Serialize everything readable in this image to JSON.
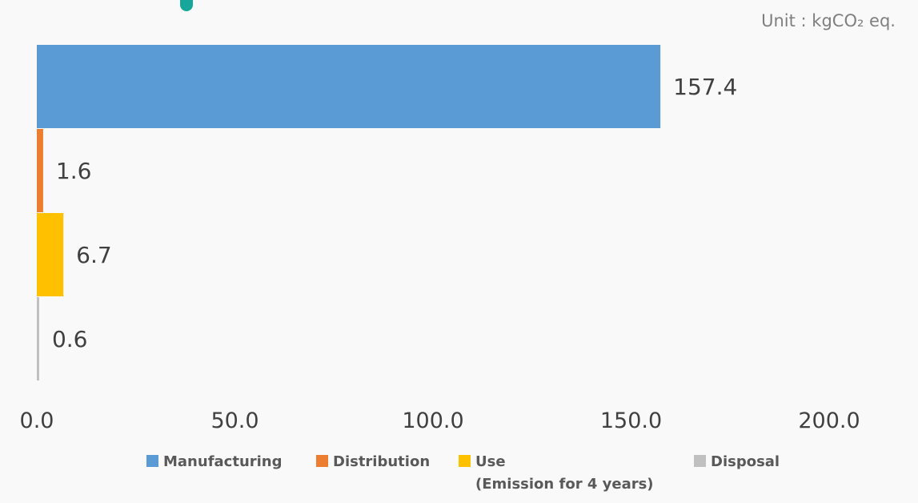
{
  "unit_label": "Unit : kgCO₂ eq.",
  "chart_data": {
    "type": "bar",
    "orientation": "horizontal",
    "categories": [
      "Manufacturing",
      "Distribution",
      "Use",
      "Disposal"
    ],
    "values": [
      157.4,
      1.6,
      6.7,
      0.6
    ],
    "value_labels": [
      "157.4",
      "1.6",
      "6.7",
      "0.6"
    ],
    "colors": [
      "#5b9bd5",
      "#ed7d31",
      "#ffc000",
      "#c0c0c0"
    ],
    "xlim": [
      0,
      200
    ],
    "xticks": [
      0,
      50,
      100,
      150,
      200
    ],
    "xtick_labels": [
      "0.0",
      "50.0",
      "100.0",
      "150.0",
      "200.0"
    ],
    "grid": false,
    "legend_position": "bottom",
    "legend": [
      {
        "label": "Manufacturing",
        "color": "#5b9bd5"
      },
      {
        "label": "Distribution",
        "color": "#ed7d31"
      },
      {
        "label": "Use",
        "color": "#ffc000",
        "note": "(Emission for 4 years)"
      },
      {
        "label": "Disposal",
        "color": "#c0c0c0"
      }
    ]
  }
}
